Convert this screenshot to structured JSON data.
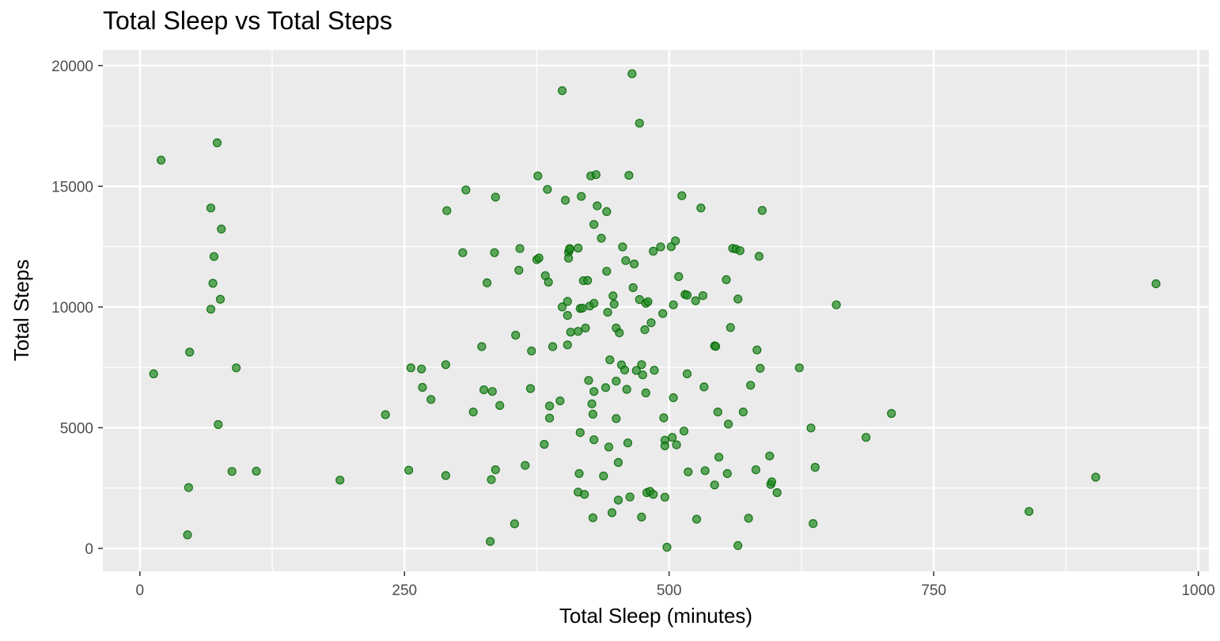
{
  "chart_data": {
    "type": "scatter",
    "title": "Total Sleep vs Total Steps",
    "xlabel": "Total Sleep (minutes)",
    "ylabel": "Total Steps",
    "xlim": [
      -35,
      1010
    ],
    "ylim": [
      -950,
      20650
    ],
    "xticks": [
      0,
      250,
      500,
      750,
      1000
    ],
    "xtick_labels": [
      "0",
      "250",
      "500",
      "750",
      "1000"
    ],
    "xminor": [
      125,
      375,
      625,
      875
    ],
    "yticks": [
      0,
      5000,
      10000,
      15000,
      20000
    ],
    "ytick_labels": [
      "0",
      "5000",
      "10000",
      "15000",
      "20000"
    ],
    "yminor": [
      2500,
      7500,
      12500,
      17500
    ],
    "grid": true,
    "legend": "none",
    "colors": {
      "panel": "#ebebeb",
      "grid": "#ffffff",
      "point_fill": "#228b22",
      "point_stroke": "#006400",
      "tick": "#333333"
    },
    "points": [
      [
        13,
        7230
      ],
      [
        20,
        16080
      ],
      [
        45,
        560
      ],
      [
        46,
        2520
      ],
      [
        47,
        8130
      ],
      [
        67,
        14100
      ],
      [
        67,
        9910
      ],
      [
        69,
        10980
      ],
      [
        70,
        12090
      ],
      [
        73,
        16800
      ],
      [
        74,
        5130
      ],
      [
        76,
        10320
      ],
      [
        77,
        13230
      ],
      [
        87,
        3190
      ],
      [
        91,
        7480
      ],
      [
        110,
        3200
      ],
      [
        189,
        2830
      ],
      [
        232,
        5540
      ],
      [
        254,
        3240
      ],
      [
        256,
        7480
      ],
      [
        266,
        7430
      ],
      [
        267,
        6670
      ],
      [
        275,
        6170
      ],
      [
        289,
        7610
      ],
      [
        289,
        3020
      ],
      [
        290,
        13990
      ],
      [
        305,
        12250
      ],
      [
        308,
        14850
      ],
      [
        315,
        5650
      ],
      [
        323,
        8360
      ],
      [
        325,
        6570
      ],
      [
        328,
        11000
      ],
      [
        331,
        290
      ],
      [
        332,
        2850
      ],
      [
        333,
        6500
      ],
      [
        335,
        12250
      ],
      [
        336,
        14550
      ],
      [
        336,
        3260
      ],
      [
        340,
        5920
      ],
      [
        354,
        1020
      ],
      [
        355,
        8830
      ],
      [
        358,
        11520
      ],
      [
        359,
        12420
      ],
      [
        364,
        3440
      ],
      [
        369,
        6620
      ],
      [
        370,
        8180
      ],
      [
        375,
        11960
      ],
      [
        376,
        15430
      ],
      [
        377,
        12030
      ],
      [
        382,
        4310
      ],
      [
        383,
        11300
      ],
      [
        385,
        14870
      ],
      [
        386,
        11030
      ],
      [
        387,
        5900
      ],
      [
        387,
        5400
      ],
      [
        390,
        8360
      ],
      [
        397,
        6110
      ],
      [
        399,
        10000
      ],
      [
        399,
        18960
      ],
      [
        402,
        14420
      ],
      [
        404,
        10230
      ],
      [
        404,
        8430
      ],
      [
        404,
        9650
      ],
      [
        405,
        12270
      ],
      [
        405,
        12020
      ],
      [
        406,
        12380
      ],
      [
        406,
        12420
      ],
      [
        407,
        8960
      ],
      [
        414,
        8990
      ],
      [
        414,
        12440
      ],
      [
        414,
        2330
      ],
      [
        415,
        3100
      ],
      [
        416,
        4800
      ],
      [
        416,
        9940
      ],
      [
        417,
        14580
      ],
      [
        418,
        9950
      ],
      [
        419,
        11090
      ],
      [
        420,
        2240
      ],
      [
        421,
        9130
      ],
      [
        423,
        11100
      ],
      [
        424,
        6960
      ],
      [
        425,
        10040
      ],
      [
        426,
        15430
      ],
      [
        427,
        5990
      ],
      [
        428,
        1270
      ],
      [
        428,
        5560
      ],
      [
        429,
        10150
      ],
      [
        429,
        13420
      ],
      [
        429,
        6500
      ],
      [
        429,
        4500
      ],
      [
        431,
        15480
      ],
      [
        432,
        14190
      ],
      [
        436,
        12850
      ],
      [
        438,
        3000
      ],
      [
        440,
        6660
      ],
      [
        441,
        11480
      ],
      [
        441,
        13950
      ],
      [
        442,
        9780
      ],
      [
        443,
        4200
      ],
      [
        444,
        7810
      ],
      [
        446,
        1480
      ],
      [
        447,
        10460
      ],
      [
        448,
        10120
      ],
      [
        450,
        6930
      ],
      [
        450,
        9130
      ],
      [
        450,
        5380
      ],
      [
        452,
        2000
      ],
      [
        452,
        3560
      ],
      [
        453,
        8930
      ],
      [
        455,
        7600
      ],
      [
        456,
        12490
      ],
      [
        458,
        7390
      ],
      [
        459,
        11920
      ],
      [
        460,
        6590
      ],
      [
        461,
        4370
      ],
      [
        462,
        15450
      ],
      [
        463,
        2130
      ],
      [
        465,
        19660
      ],
      [
        466,
        10800
      ],
      [
        467,
        11780
      ],
      [
        469,
        7370
      ],
      [
        472,
        10310
      ],
      [
        472,
        17610
      ],
      [
        474,
        1300
      ],
      [
        474,
        7610
      ],
      [
        475,
        7190
      ],
      [
        477,
        9060
      ],
      [
        478,
        6440
      ],
      [
        478,
        10150
      ],
      [
        479,
        2310
      ],
      [
        480,
        10220
      ],
      [
        482,
        2360
      ],
      [
        483,
        9350
      ],
      [
        485,
        2240
      ],
      [
        485,
        12310
      ],
      [
        486,
        7380
      ],
      [
        492,
        12490
      ],
      [
        494,
        9730
      ],
      [
        495,
        5410
      ],
      [
        496,
        4480
      ],
      [
        496,
        2120
      ],
      [
        496,
        4250
      ],
      [
        498,
        50
      ],
      [
        502,
        12500
      ],
      [
        503,
        4600
      ],
      [
        504,
        10090
      ],
      [
        504,
        6240
      ],
      [
        506,
        12740
      ],
      [
        507,
        4290
      ],
      [
        509,
        11260
      ],
      [
        512,
        14610
      ],
      [
        514,
        4860
      ],
      [
        515,
        10520
      ],
      [
        517,
        10490
      ],
      [
        517,
        7230
      ],
      [
        518,
        3170
      ],
      [
        525,
        10260
      ],
      [
        526,
        1210
      ],
      [
        530,
        14100
      ],
      [
        532,
        10470
      ],
      [
        533,
        6690
      ],
      [
        534,
        3220
      ],
      [
        543,
        2630
      ],
      [
        543,
        8390
      ],
      [
        544,
        8370
      ],
      [
        546,
        5650
      ],
      [
        547,
        3780
      ],
      [
        554,
        11130
      ],
      [
        555,
        3100
      ],
      [
        556,
        5150
      ],
      [
        558,
        9150
      ],
      [
        560,
        12430
      ],
      [
        563,
        12400
      ],
      [
        565,
        120
      ],
      [
        565,
        10330
      ],
      [
        567,
        12330
      ],
      [
        570,
        5650
      ],
      [
        575,
        1250
      ],
      [
        577,
        6760
      ],
      [
        582,
        3260
      ],
      [
        583,
        8220
      ],
      [
        585,
        12100
      ],
      [
        586,
        7460
      ],
      [
        588,
        14000
      ],
      [
        595,
        3830
      ],
      [
        596,
        2650
      ],
      [
        597,
        2760
      ],
      [
        602,
        2310
      ],
      [
        623,
        7480
      ],
      [
        634,
        4990
      ],
      [
        636,
        1030
      ],
      [
        638,
        3360
      ],
      [
        658,
        10090
      ],
      [
        686,
        4600
      ],
      [
        710,
        5590
      ],
      [
        840,
        1530
      ],
      [
        903,
        2950
      ],
      [
        960,
        10960
      ]
    ]
  }
}
